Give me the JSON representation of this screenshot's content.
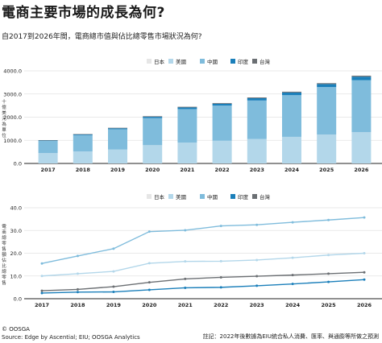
{
  "title": "電商主要市場的成長為何?",
  "subtitle": "自2017到2026年間，電商總市值與佔比總零售市場狀況為何?",
  "colors": {
    "japan": "#e6e6e6",
    "usa": "#b3d7ea",
    "china": "#7fbcdc",
    "india": "#1b7fba",
    "taiwan": "#6b6f73"
  },
  "chart_data": [
    {
      "type": "bar",
      "stacked": true,
      "categories": [
        "2017",
        "2018",
        "2019",
        "2020",
        "2021",
        "2022",
        "2023",
        "2024",
        "2025",
        "2026"
      ],
      "legend": [
        "日本",
        "美國",
        "中國",
        "印度",
        "台灣"
      ],
      "ylabel": "十億美元為單位",
      "yticks": [
        "0.0",
        "1000.0",
        "2000.0",
        "3000.0",
        "4000.0"
      ],
      "ylim": [
        0,
        4000
      ],
      "series": [
        {
          "name": "日本",
          "color_key": "japan",
          "values": [
            0,
            0,
            0,
            0,
            0,
            0,
            0,
            0,
            0,
            0
          ]
        },
        {
          "name": "美國",
          "color_key": "usa",
          "values": [
            450,
            520,
            600,
            790,
            900,
            980,
            1060,
            1150,
            1250,
            1350
          ]
        },
        {
          "name": "中國",
          "color_key": "china",
          "values": [
            520,
            700,
            880,
            1170,
            1450,
            1520,
            1660,
            1800,
            2050,
            2250
          ]
        },
        {
          "name": "印度",
          "color_key": "india",
          "values": [
            20,
            30,
            40,
            55,
            70,
            80,
            100,
            115,
            130,
            150
          ]
        },
        {
          "name": "台灣",
          "color_key": "taiwan",
          "values": [
            15,
            18,
            20,
            25,
            28,
            30,
            32,
            35,
            38,
            40
          ]
        }
      ]
    },
    {
      "type": "line",
      "categories": [
        "2017",
        "2018",
        "2019",
        "2020",
        "2021",
        "2022",
        "2023",
        "2024",
        "2025",
        "2026"
      ],
      "legend": [
        "日本",
        "美國",
        "中國",
        "印度",
        "台灣"
      ],
      "ylabel": "電商總零售額佔比總零售",
      "yticks": [
        "0.0",
        "10.0",
        "20.0",
        "30.0",
        "40.0"
      ],
      "ylim": [
        0,
        40
      ],
      "series": [
        {
          "name": "日本",
          "color_key": "japan",
          "values": [
            0,
            0,
            0,
            0,
            0,
            0,
            0,
            0,
            0,
            0
          ]
        },
        {
          "name": "美國",
          "color_key": "usa",
          "values": [
            10.0,
            11.0,
            12.0,
            15.6,
            16.4,
            16.5,
            17.0,
            18.0,
            19.2,
            20.0
          ]
        },
        {
          "name": "中國",
          "color_key": "china",
          "values": [
            15.5,
            18.8,
            22.0,
            29.5,
            30.1,
            32.0,
            32.5,
            33.6,
            34.6,
            35.7
          ]
        },
        {
          "name": "印度",
          "color_key": "india",
          "values": [
            2.5,
            2.9,
            3.0,
            3.9,
            4.8,
            5.0,
            5.7,
            6.5,
            7.4,
            8.4
          ]
        },
        {
          "name": "台灣",
          "color_key": "taiwan",
          "values": [
            3.5,
            4.1,
            5.3,
            7.2,
            8.7,
            9.4,
            9.9,
            10.4,
            11.0,
            11.6
          ]
        }
      ]
    }
  ],
  "footer": {
    "copyright": "© OOSGA",
    "source": "Source: Edge by Ascential; EIU; OOSGA Analytics",
    "note": "註記：2022年後數據為EIU統合私人消費、匯率、與通膨等所做之預測"
  }
}
